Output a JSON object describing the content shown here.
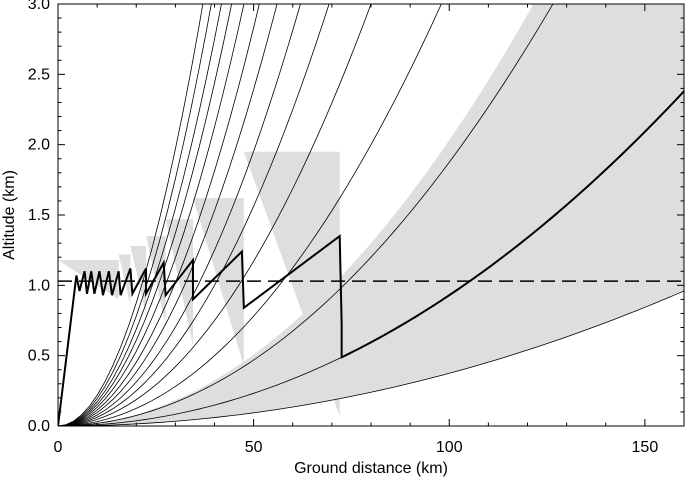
{
  "chart_data": {
    "type": "line",
    "title": "",
    "xlabel": "Ground distance (km)",
    "ylabel": "Altitude (km)",
    "xlim": [
      0,
      160
    ],
    "ylim": [
      0,
      3.0
    ],
    "xticks": [
      0,
      50,
      100,
      150
    ],
    "xtick_labels": [
      "0",
      "50",
      "100",
      "150"
    ],
    "yticks": [
      0.0,
      0.5,
      1.0,
      1.5,
      2.0,
      2.5,
      3.0
    ],
    "ytick_labels": [
      "0.0",
      "0.5",
      "1.0",
      "1.5",
      "2.0",
      "2.5",
      "3.0"
    ],
    "reference_line": {
      "name": "Dashed reference altitude",
      "y": 1.03,
      "style": "dashed"
    },
    "ray_family": {
      "name": "Thin curved rays from origin",
      "y_at_160km": [
        0.96,
        2.38,
        4.8,
        8.0,
        12.0,
        16.0,
        20.0,
        24.5,
        29.0,
        34.0,
        39.0,
        44.0,
        50.0,
        56.0
      ],
      "note": "Each ray is a quadratic altitude curve starting at the origin; values are altitudes reached at 160 km"
    },
    "shaded_band": {
      "name": "Gray coverage band",
      "upper_y_at_160km": 5.2,
      "lower_y_at_160km": 0.96
    },
    "gray_wedges": [
      {
        "x": 72,
        "y_top": 1.95,
        "y_bottom": 0.07
      },
      {
        "x": 47.5,
        "y_top": 1.62,
        "y_bottom": 0.43
      },
      {
        "x": 34.5,
        "y_top": 1.47,
        "y_bottom": 0.57
      },
      {
        "x": 27.5,
        "y_top": 1.35,
        "y_bottom": 0.72
      },
      {
        "x": 22.5,
        "y_top": 1.28,
        "y_bottom": 0.8
      },
      {
        "x": 18.5,
        "y_top": 1.22,
        "y_bottom": 0.86
      },
      {
        "x": 15.5,
        "y_top": 1.18,
        "y_bottom": 0.9
      }
    ],
    "sawtooth": {
      "name": "Thick zig-zag trajectory",
      "points": [
        [
          0,
          0
        ],
        [
          4.7,
          1.07
        ],
        [
          5.5,
          0.96
        ],
        [
          6.8,
          1.1
        ],
        [
          7.4,
          0.94
        ],
        [
          8.5,
          1.1
        ],
        [
          9.3,
          0.94
        ],
        [
          10.6,
          1.1
        ],
        [
          11.5,
          0.93
        ],
        [
          13,
          1.1
        ],
        [
          13.8,
          0.93
        ],
        [
          15.5,
          1.1
        ],
        [
          16,
          0.93
        ],
        [
          18.5,
          1.12
        ],
        [
          19,
          0.94
        ],
        [
          22.5,
          1.12
        ],
        [
          22.5,
          0.94
        ],
        [
          27,
          1.16
        ],
        [
          27.5,
          0.93
        ],
        [
          34.5,
          1.18
        ],
        [
          34.5,
          0.9
        ],
        [
          47,
          1.24
        ],
        [
          47.5,
          0.84
        ],
        [
          72,
          1.35
        ],
        [
          72.5,
          0.72
        ],
        [
          160,
          2.38
        ]
      ]
    }
  }
}
